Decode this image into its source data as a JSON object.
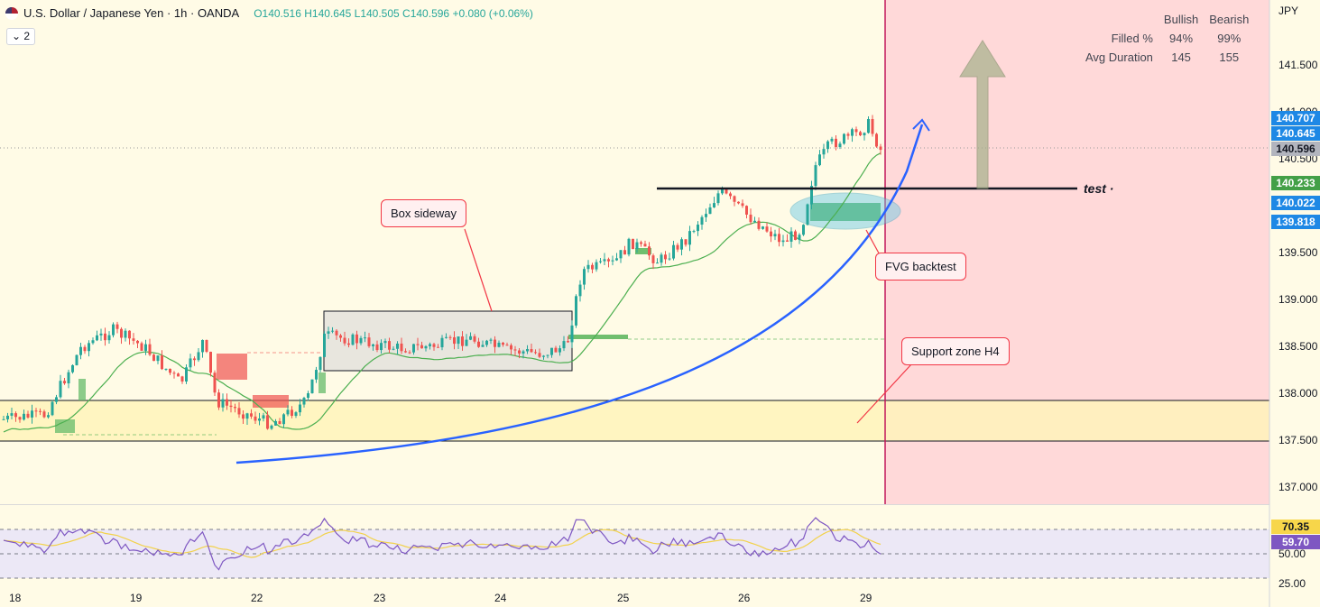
{
  "header": {
    "symbol": "U.S. Dollar / Japanese Yen · 1h · OANDA",
    "open": "O140.516",
    "high": "H140.645",
    "low": "L140.505",
    "close": "C140.596",
    "change": "+0.080 (+0.06%)",
    "indicator_count": "2",
    "currency": "JPY"
  },
  "stats": {
    "col1": "Bullish",
    "col2": "Bearish",
    "row1": {
      "label": "Filled %",
      "bull": "94%",
      "bear": "99%"
    },
    "row2": {
      "label": "Avg Duration",
      "bull": "145",
      "bear": "155"
    }
  },
  "annotations": {
    "box": "Box sideway",
    "fvg": "FVG backtest",
    "support": "Support zone H4",
    "test": "test"
  },
  "price_tags": {
    "t1": "140.707",
    "t2": "140.645",
    "t3": "140.596",
    "t4": "140.233",
    "t5": "140.022",
    "t6": "139.818",
    "rsi_ma": "70.35",
    "rsi": "59.70"
  },
  "colors": {
    "up": "#26a69a",
    "down": "#ef5350",
    "ma": "#4caf50",
    "curve": "#2962ff",
    "rsi": "#7e57c2",
    "rsi_ma": "#f7d64a",
    "support_zone": "#fff3b0",
    "future_zone": "#ffd6d6"
  },
  "chart_data": {
    "type": "candlestick",
    "y_axis": {
      "labels": [
        "141.500",
        "141.000",
        "140.500",
        "139.500",
        "139.000",
        "138.500",
        "138.000",
        "137.500",
        "137.000"
      ],
      "ylim": [
        136.9,
        141.6
      ]
    },
    "x_axis": {
      "labels": [
        "18",
        "19",
        "22",
        "23",
        "24",
        "25",
        "26",
        "29"
      ]
    },
    "rsi": {
      "ticks": [
        "50.00",
        "25.00"
      ],
      "levels": [
        70,
        50,
        30
      ]
    },
    "support_zone": [
      137.5,
      137.92
    ],
    "resistance": 140.23,
    "fvg": [
      139.88,
      140.09
    ],
    "last_price": 140.596
  }
}
